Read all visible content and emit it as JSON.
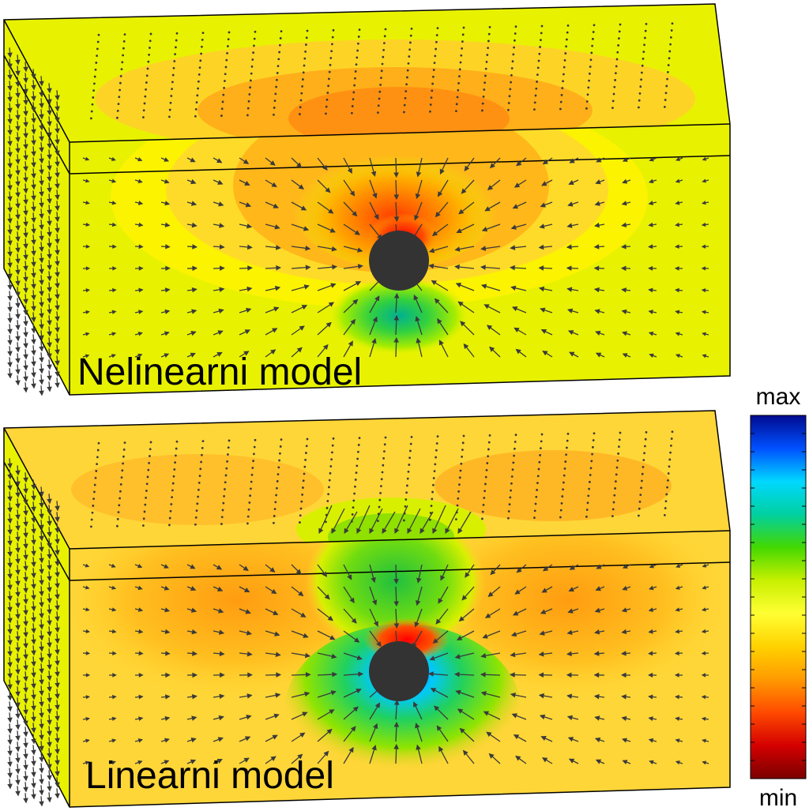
{
  "panels": [
    {
      "label": "Nelinearni model"
    },
    {
      "label": "Linearni model"
    }
  ],
  "colorbar": {
    "max_label": "max",
    "min_label": "min",
    "stops": [
      "#7a0000",
      "#d40000",
      "#ff4a00",
      "#ff9a00",
      "#ffd200",
      "#ffff33",
      "#c8f000",
      "#44d800",
      "#00d0a0",
      "#00d8ff",
      "#0050ff",
      "#000a90"
    ]
  },
  "colors": {
    "background_field": "#e8f200",
    "outline": "#000000",
    "arrow": "#3a3a3a",
    "inclusion": "#333333"
  }
}
